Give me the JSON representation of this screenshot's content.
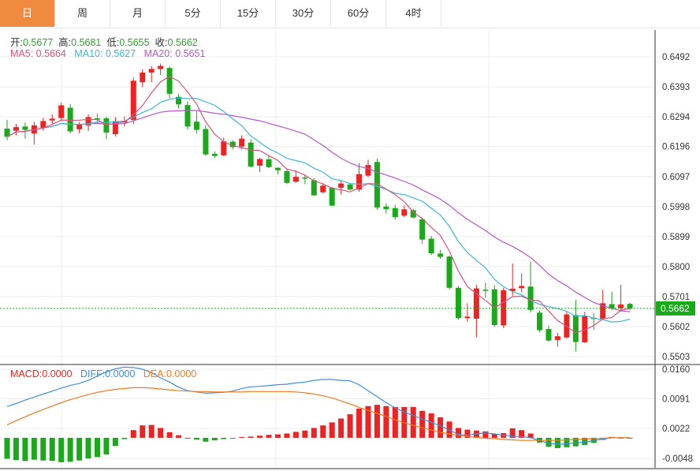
{
  "tabs": [
    "日",
    "周",
    "月",
    "5分",
    "15分",
    "30分",
    "60分",
    "4时"
  ],
  "ohlc": {
    "open_label": "开:",
    "open": "0.5677",
    "high_label": "高:",
    "high": "0.5681",
    "low_label": "低:",
    "low": "0.5655",
    "close_label": "收:",
    "close": "0.5662"
  },
  "ma": {
    "ma5_label": "MA5: ",
    "ma5": "0.5664",
    "ma10_label": "MA10: ",
    "ma10": "0.5627",
    "ma20_label": "MA20: ",
    "ma20": "0.5651"
  },
  "macd": {
    "macd_label": "MACD:",
    "macd": "0.0000",
    "diff_label": "DIFF:",
    "diff": "0.0000",
    "dea_label": "DEA:",
    "dea": "0.0000"
  },
  "colors": {
    "up": "#ee2222",
    "down": "#1aa91a",
    "ma5": "#e0507a",
    "ma10": "#3ab8d8",
    "ma20": "#b558c4",
    "diff": "#3d8fe0",
    "dea": "#f07a1c",
    "accent": "#f08a3f",
    "last_price_bg": "#1aa91a"
  },
  "chart_data": {
    "type": "candlestick",
    "price_axis": {
      "ticks": [
        0.6492,
        0.6393,
        0.6294,
        0.6196,
        0.6097,
        0.5998,
        0.5899,
        0.58,
        0.5701,
        0.5602,
        0.5503
      ],
      "labels": [
        "0.6492",
        "0.6393",
        "0.6294",
        "0.6196",
        "0.6097",
        "0.5998",
        "0.5899",
        "0.5800",
        "0.5701",
        "0.5602",
        "0.5503"
      ],
      "last_price": "0.5662"
    },
    "macd_axis": {
      "ticks": [
        0.016,
        0.0091,
        0.0022,
        -0.0048
      ],
      "labels": [
        "0.0160",
        "0.0091",
        "0.0022",
        "-0.0048"
      ]
    },
    "candles": [
      [
        0.6255,
        0.6228,
        0.6284,
        0.6217
      ],
      [
        0.6248,
        0.626,
        0.6271,
        0.6233
      ],
      [
        0.6262,
        0.6251,
        0.6275,
        0.6222
      ],
      [
        0.6239,
        0.6266,
        0.6278,
        0.6202
      ],
      [
        0.6258,
        0.628,
        0.6291,
        0.6248
      ],
      [
        0.6282,
        0.6288,
        0.6302,
        0.6268
      ],
      [
        0.629,
        0.6332,
        0.6341,
        0.6279
      ],
      [
        0.6324,
        0.6246,
        0.6336,
        0.6239
      ],
      [
        0.6253,
        0.6269,
        0.6276,
        0.624
      ],
      [
        0.6266,
        0.6293,
        0.6302,
        0.6247
      ],
      [
        0.6289,
        0.6286,
        0.6305,
        0.6273
      ],
      [
        0.6289,
        0.6242,
        0.6294,
        0.622
      ],
      [
        0.6237,
        0.628,
        0.6293,
        0.623
      ],
      [
        0.6275,
        0.6281,
        0.6295,
        0.6262
      ],
      [
        0.6284,
        0.6413,
        0.6424,
        0.627
      ],
      [
        0.6408,
        0.644,
        0.6451,
        0.6392
      ],
      [
        0.644,
        0.6452,
        0.6462,
        0.6408
      ],
      [
        0.6452,
        0.6462,
        0.647,
        0.6432
      ],
      [
        0.6455,
        0.637,
        0.646,
        0.6355
      ],
      [
        0.636,
        0.6335,
        0.637,
        0.6322
      ],
      [
        0.6333,
        0.6262,
        0.6345,
        0.6252
      ],
      [
        0.6278,
        0.6251,
        0.6312,
        0.6238
      ],
      [
        0.6254,
        0.617,
        0.6266,
        0.6165
      ],
      [
        0.6172,
        0.6165,
        0.618,
        0.6158
      ],
      [
        0.6167,
        0.6213,
        0.6226,
        0.6164
      ],
      [
        0.6212,
        0.6194,
        0.6217,
        0.6186
      ],
      [
        0.6196,
        0.6222,
        0.6233,
        0.6186
      ],
      [
        0.6209,
        0.613,
        0.622,
        0.6127
      ],
      [
        0.6133,
        0.6155,
        0.6159,
        0.6112
      ],
      [
        0.6154,
        0.6128,
        0.6166,
        0.6125
      ],
      [
        0.6126,
        0.6118,
        0.6127,
        0.6105
      ],
      [
        0.6115,
        0.6076,
        0.6124,
        0.6072
      ],
      [
        0.608,
        0.6096,
        0.6117,
        0.6076
      ],
      [
        0.6094,
        0.609,
        0.6104,
        0.6072
      ],
      [
        0.6085,
        0.6035,
        0.6091,
        0.6033
      ],
      [
        0.6045,
        0.6067,
        0.6075,
        0.6041
      ],
      [
        0.606,
        0.6001,
        0.6063,
        0.6
      ],
      [
        0.606,
        0.6074,
        0.6083,
        0.6038
      ],
      [
        0.6071,
        0.6054,
        0.6076,
        0.6051
      ],
      [
        0.6054,
        0.6105,
        0.6141,
        0.6047
      ],
      [
        0.61,
        0.6135,
        0.6152,
        0.6095
      ],
      [
        0.6145,
        0.5995,
        0.6156,
        0.5988
      ],
      [
        0.5998,
        0.5989,
        0.6009,
        0.5975
      ],
      [
        0.5993,
        0.5963,
        0.6004,
        0.5955
      ],
      [
        0.5968,
        0.5989,
        0.6002,
        0.5963
      ],
      [
        0.5986,
        0.5962,
        0.599,
        0.5959
      ],
      [
        0.5956,
        0.5889,
        0.5962,
        0.5875
      ],
      [
        0.5892,
        0.5844,
        0.5901,
        0.5838
      ],
      [
        0.5843,
        0.5832,
        0.5855,
        0.5825
      ],
      [
        0.5833,
        0.573,
        0.5837,
        0.5725
      ],
      [
        0.573,
        0.563,
        0.5736,
        0.5625
      ],
      [
        0.563,
        0.5635,
        0.5679,
        0.5618
      ],
      [
        0.5628,
        0.5728,
        0.574,
        0.5567
      ],
      [
        0.5724,
        0.572,
        0.5747,
        0.5697
      ],
      [
        0.5725,
        0.5607,
        0.5739,
        0.5602
      ],
      [
        0.5606,
        0.5722,
        0.573,
        0.5597
      ],
      [
        0.5719,
        0.5727,
        0.581,
        0.5704
      ],
      [
        0.5729,
        0.5736,
        0.5777,
        0.5715
      ],
      [
        0.5734,
        0.5657,
        0.5817,
        0.5649
      ],
      [
        0.5648,
        0.559,
        0.5655,
        0.5584
      ],
      [
        0.5594,
        0.5556,
        0.5605,
        0.5552
      ],
      [
        0.5558,
        0.557,
        0.5581,
        0.5536
      ],
      [
        0.5566,
        0.5642,
        0.565,
        0.5562
      ],
      [
        0.564,
        0.5551,
        0.569,
        0.552
      ],
      [
        0.555,
        0.5636,
        0.5651,
        0.5548
      ],
      [
        0.5631,
        0.563,
        0.5647,
        0.5591
      ],
      [
        0.5628,
        0.5679,
        0.5724,
        0.5623
      ],
      [
        0.5676,
        0.5662,
        0.5717,
        0.5657
      ],
      [
        0.5663,
        0.5675,
        0.574,
        0.5651
      ],
      [
        0.5677,
        0.5662,
        0.5681,
        0.5655
      ]
    ],
    "macd": {
      "hist": [
        -0.0049,
        -0.0052,
        -0.0054,
        -0.0051,
        -0.0053,
        -0.0054,
        -0.0057,
        -0.0056,
        -0.0053,
        -0.0048,
        -0.0045,
        -0.0039,
        -0.0019,
        -0.0003,
        0.0018,
        0.0029,
        0.003,
        0.0023,
        0.0013,
        0.0006,
        0.0,
        -0.0004,
        -0.0009,
        -0.0006,
        -0.0003,
        -0.0001,
        0.0002,
        0.0003,
        0.0005,
        0.0007,
        0.0008,
        0.001,
        0.0014,
        0.0017,
        0.0023,
        0.0029,
        0.0036,
        0.0045,
        0.0055,
        0.0068,
        0.0074,
        0.0077,
        0.0074,
        0.0072,
        0.0072,
        0.0072,
        0.0063,
        0.0057,
        0.0048,
        0.0038,
        0.0023,
        0.0019,
        0.0017,
        0.0015,
        0.0009,
        0.0011,
        0.0022,
        0.0018,
        0.001,
        -0.0011,
        -0.0021,
        -0.0024,
        -0.0022,
        -0.002,
        -0.0017,
        -0.0012,
        -0.0005,
        0.0002,
        -0.0001,
        0.0
      ],
      "diff": [
        0.0073,
        0.008,
        0.0088,
        0.0095,
        0.0102,
        0.0109,
        0.0116,
        0.0122,
        0.0127,
        0.0134,
        0.0144,
        0.0154,
        0.0161,
        0.0165,
        0.0164,
        0.016,
        0.0152,
        0.014,
        0.013,
        0.0118,
        0.011,
        0.0107,
        0.0104,
        0.0105,
        0.0106,
        0.0109,
        0.0115,
        0.0119,
        0.012,
        0.0122,
        0.0124,
        0.0125,
        0.0128,
        0.013,
        0.0134,
        0.0136,
        0.0136,
        0.0134,
        0.0133,
        0.0124,
        0.011,
        0.0096,
        0.0082,
        0.007,
        0.006,
        0.0052,
        0.0044,
        0.0036,
        0.0028,
        0.0018,
        0.0008,
        0.0006,
        0.0009,
        0.0011,
        0.0009,
        0.0006,
        0.0004,
        0.0003,
        0.0,
        -0.0006,
        -0.0013,
        -0.0015,
        -0.0014,
        -0.0012,
        -0.001,
        -0.0006,
        -0.0003,
        0.0,
        0.0,
        0.0
      ],
      "dea": [
        0.003,
        0.004,
        0.0049,
        0.0058,
        0.0066,
        0.0074,
        0.0082,
        0.0089,
        0.0095,
        0.0101,
        0.0106,
        0.011,
        0.0113,
        0.0115,
        0.0117,
        0.0117,
        0.0116,
        0.0114,
        0.0112,
        0.011,
        0.0109,
        0.0108,
        0.0108,
        0.0107,
        0.0107,
        0.0107,
        0.0107,
        0.0108,
        0.0108,
        0.0108,
        0.0108,
        0.0108,
        0.0107,
        0.0105,
        0.0102,
        0.0098,
        0.0093,
        0.0086,
        0.0079,
        0.0071,
        0.0064,
        0.0057,
        0.005,
        0.0042,
        0.0035,
        0.0029,
        0.0023,
        0.0018,
        0.0013,
        0.0009,
        0.0006,
        0.0003,
        0.0001,
        -0.0001,
        -0.0002,
        -0.0004,
        -0.0005,
        -0.0006,
        -0.0006,
        -0.0006,
        -0.0006,
        -0.0006,
        -0.0005,
        -0.0004,
        -0.0003,
        -0.0002,
        -0.0001,
        0.0,
        0.0,
        0.0
      ]
    }
  }
}
